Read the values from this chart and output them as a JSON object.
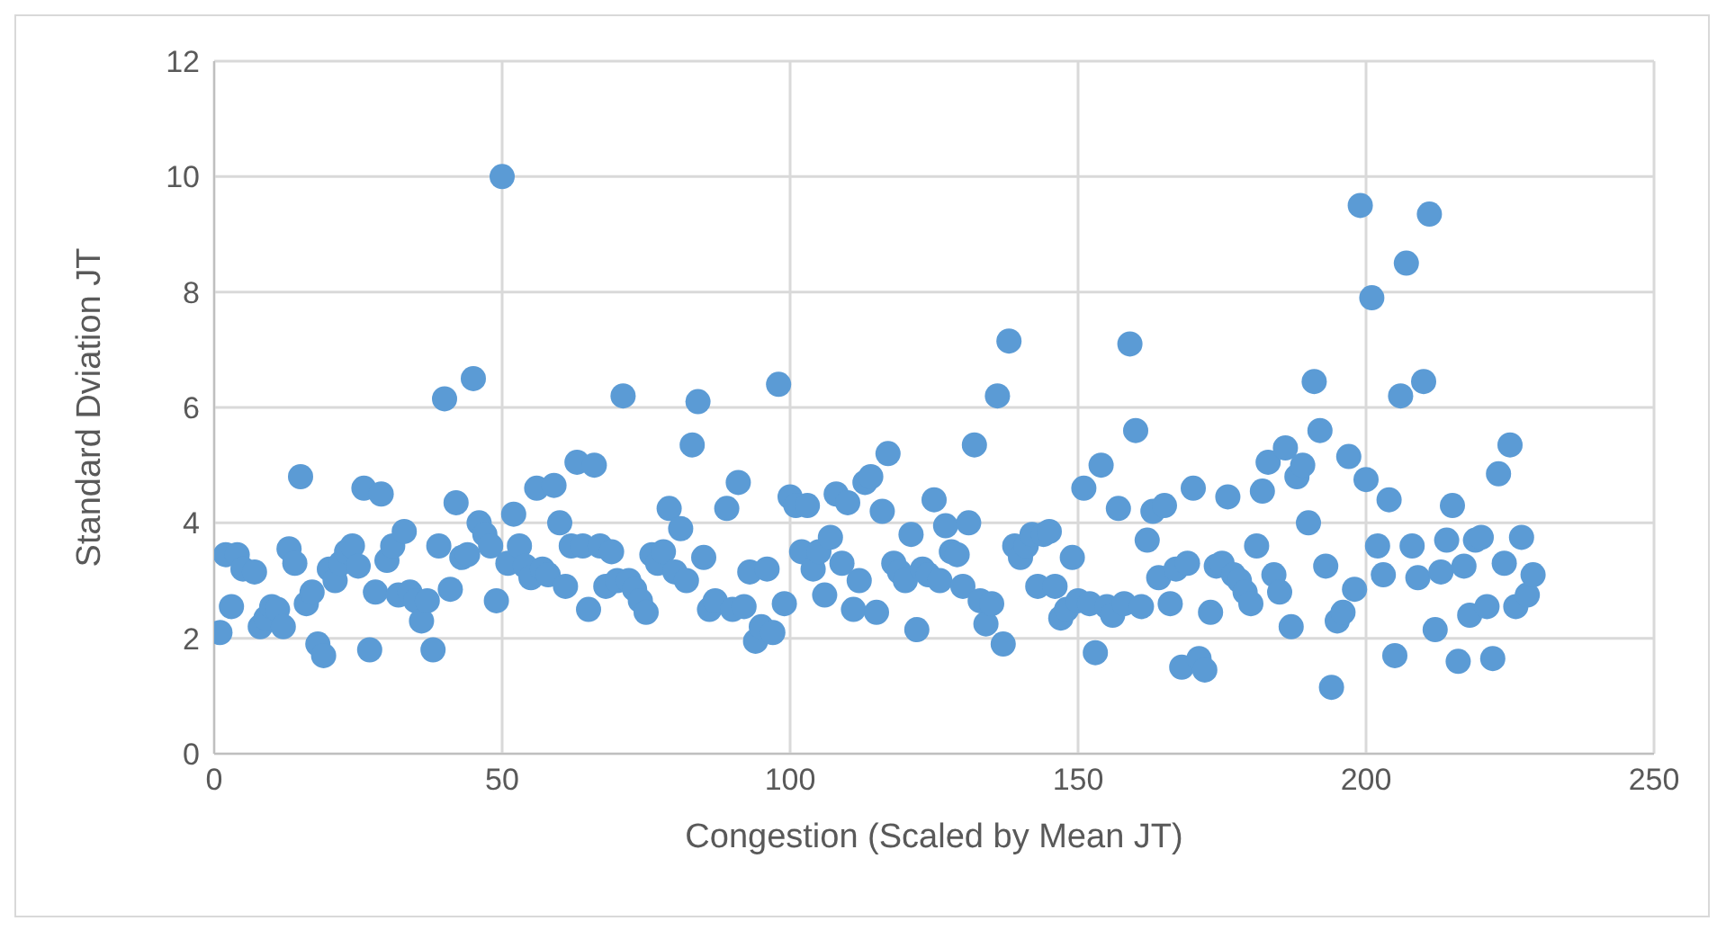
{
  "chart_data": {
    "type": "scatter",
    "xlabel": "Congestion (Scaled by Mean JT)",
    "ylabel": "Standard Dviation JT",
    "x": [
      1,
      2,
      3,
      4,
      5,
      7,
      8,
      9,
      10,
      11,
      12,
      13,
      14,
      15,
      16,
      17,
      18,
      19,
      20,
      21,
      22,
      23,
      24,
      25,
      26,
      27,
      28,
      29,
      30,
      31,
      32,
      33,
      34,
      35,
      36,
      37,
      38,
      39,
      40,
      41,
      42,
      43,
      44,
      45,
      46,
      47,
      48,
      49,
      50,
      51,
      52,
      53,
      54,
      55,
      56,
      57,
      58,
      59,
      60,
      61,
      62,
      63,
      64,
      65,
      66,
      67,
      68,
      69,
      70,
      71,
      72,
      73,
      74,
      75,
      76,
      77,
      78,
      79,
      80,
      81,
      82,
      83,
      84,
      85,
      86,
      87,
      89,
      90,
      91,
      92,
      93,
      94,
      95,
      96,
      97,
      98,
      99,
      100,
      101,
      102,
      103,
      104,
      105,
      106,
      107,
      108,
      109,
      110,
      111,
      112,
      113,
      114,
      115,
      116,
      117,
      118,
      119,
      120,
      121,
      122,
      123,
      124,
      125,
      126,
      127,
      128,
      129,
      130,
      131,
      132,
      133,
      134,
      135,
      136,
      137,
      138,
      139,
      140,
      141,
      142,
      143,
      144,
      145,
      146,
      147,
      148,
      149,
      150,
      151,
      152,
      153,
      154,
      155,
      156,
      157,
      158,
      159,
      160,
      161,
      162,
      163,
      164,
      165,
      166,
      167,
      168,
      169,
      170,
      171,
      172,
      173,
      174,
      175,
      176,
      177,
      178,
      179,
      180,
      181,
      182,
      183,
      184,
      185,
      186,
      187,
      188,
      189,
      190,
      191,
      192,
      193,
      194,
      195,
      196,
      197,
      198,
      199,
      200,
      201,
      202,
      203,
      204,
      205,
      206,
      207,
      208,
      209,
      210,
      211,
      212,
      213,
      214,
      215,
      216,
      217,
      218,
      219,
      220,
      221,
      222,
      223,
      224,
      225,
      226,
      227,
      228,
      229
    ],
    "values": [
      2.1,
      3.45,
      2.55,
      3.45,
      3.2,
      3.15,
      2.2,
      2.35,
      2.55,
      2.5,
      2.2,
      3.55,
      3.3,
      4.8,
      2.6,
      2.8,
      1.9,
      1.7,
      3.2,
      3.0,
      3.3,
      3.5,
      3.6,
      3.25,
      4.6,
      1.8,
      2.8,
      4.5,
      3.35,
      3.6,
      2.75,
      3.85,
      2.8,
      2.65,
      2.3,
      2.65,
      1.8,
      3.6,
      6.15,
      2.85,
      4.35,
      3.4,
      3.45,
      6.5,
      4.0,
      3.8,
      3.6,
      2.65,
      10.0,
      3.3,
      4.15,
      3.6,
      3.25,
      3.05,
      4.6,
      3.2,
      3.1,
      4.65,
      4.0,
      2.9,
      3.6,
      5.05,
      3.6,
      2.5,
      5.0,
      3.6,
      2.9,
      3.5,
      3.0,
      6.2,
      3.0,
      2.85,
      2.65,
      2.45,
      3.45,
      3.3,
      3.5,
      4.25,
      3.15,
      3.9,
      3.0,
      5.35,
      6.1,
      3.4,
      2.5,
      2.65,
      4.25,
      2.5,
      4.7,
      2.55,
      3.15,
      1.95,
      2.2,
      3.2,
      2.1,
      6.4,
      2.6,
      4.45,
      4.3,
      3.5,
      4.3,
      3.2,
      3.5,
      2.75,
      3.75,
      4.5,
      3.3,
      4.35,
      2.5,
      3.0,
      4.7,
      4.8,
      2.45,
      4.2,
      5.2,
      3.3,
      3.15,
      3.0,
      3.8,
      2.15,
      3.2,
      3.1,
      4.4,
      3.0,
      3.95,
      3.5,
      3.45,
      2.9,
      4.0,
      5.35,
      2.65,
      2.25,
      2.6,
      6.2,
      1.9,
      7.15,
      3.6,
      3.4,
      3.6,
      3.8,
      2.9,
      3.8,
      3.85,
      2.9,
      2.35,
      2.5,
      3.4,
      2.65,
      4.6,
      2.6,
      1.75,
      5.0,
      2.55,
      2.4,
      4.25,
      2.6,
      7.1,
      5.6,
      2.55,
      3.7,
      4.2,
      3.05,
      4.3,
      2.6,
      3.2,
      1.5,
      3.3,
      4.6,
      1.65,
      1.45,
      2.45,
      3.25,
      3.3,
      4.45,
      3.1,
      3.0,
      2.8,
      2.6,
      3.6,
      4.55,
      5.05,
      3.1,
      2.8,
      5.3,
      2.2,
      4.8,
      5.0,
      4.0,
      6.45,
      5.6,
      3.25,
      1.15,
      2.3,
      2.45,
      5.15,
      2.85,
      9.5,
      4.75,
      7.9,
      3.6,
      3.1,
      4.4,
      1.7,
      6.2,
      8.5,
      3.6,
      3.05,
      6.45,
      9.35,
      2.15,
      3.15,
      3.7,
      4.3,
      1.6,
      3.25,
      2.4,
      3.7,
      3.75,
      2.55,
      1.65,
      4.85,
      3.3,
      5.35,
      2.55,
      3.75,
      2.75,
      3.1
    ],
    "color": "#5b9bd5",
    "marker": "circle",
    "grid": true,
    "xlim": [
      0,
      250
    ],
    "xticks": [
      0,
      50,
      100,
      150,
      200,
      250
    ],
    "ylim": [
      0,
      12
    ],
    "yticks": [
      0,
      2,
      4,
      6,
      8,
      10,
      12
    ]
  }
}
